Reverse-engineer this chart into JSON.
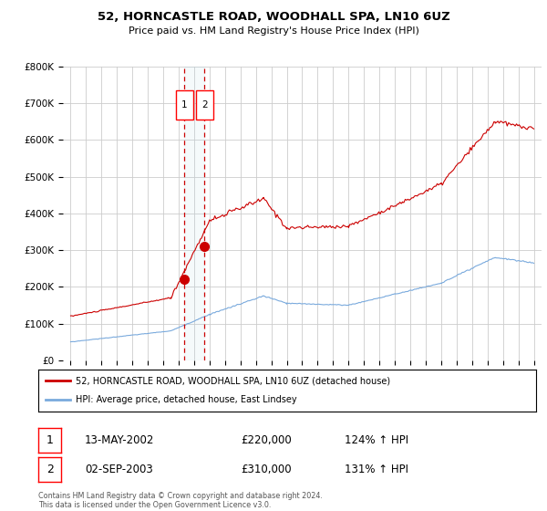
{
  "title": "52, HORNCASTLE ROAD, WOODHALL SPA, LN10 6UZ",
  "subtitle": "Price paid vs. HM Land Registry's House Price Index (HPI)",
  "legend_line1": "52, HORNCASTLE ROAD, WOODHALL SPA, LN10 6UZ (detached house)",
  "legend_line2": "HPI: Average price, detached house, East Lindsey",
  "footer": "Contains HM Land Registry data © Crown copyright and database right 2024.\nThis data is licensed under the Open Government Licence v3.0.",
  "sale1_date": "13-MAY-2002",
  "sale1_price": "£220,000",
  "sale1_hpi": "124% ↑ HPI",
  "sale1_year": 2002.36,
  "sale1_value": 220000,
  "sale2_date": "02-SEP-2003",
  "sale2_price": "£310,000",
  "sale2_hpi": "131% ↑ HPI",
  "sale2_year": 2003.67,
  "sale2_value": 310000,
  "red_line_color": "#cc0000",
  "blue_line_color": "#7aaadd",
  "background_color": "#ffffff",
  "grid_color": "#cccccc",
  "ylim": [
    0,
    800000
  ],
  "xlim": [
    1994.5,
    2025.5
  ],
  "yticks": [
    0,
    100000,
    200000,
    300000,
    400000,
    500000,
    600000,
    700000,
    800000
  ],
  "ytick_labels": [
    "£0",
    "£100K",
    "£200K",
    "£300K",
    "£400K",
    "£500K",
    "£600K",
    "£700K",
    "£800K"
  ],
  "xticks": [
    1995,
    1996,
    1997,
    1998,
    1999,
    2000,
    2001,
    2002,
    2003,
    2004,
    2005,
    2006,
    2007,
    2008,
    2009,
    2010,
    2011,
    2012,
    2013,
    2014,
    2015,
    2016,
    2017,
    2018,
    2019,
    2020,
    2021,
    2022,
    2023,
    2024,
    2025
  ]
}
